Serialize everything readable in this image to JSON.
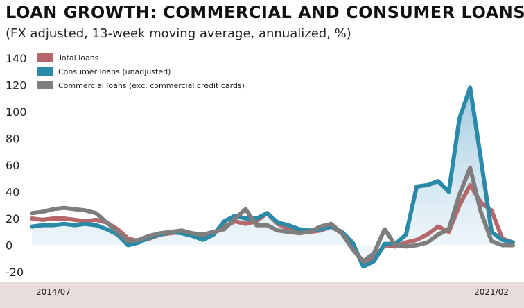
{
  "header": {
    "title": "LOAN GROWTH: COMMERCIAL AND CONSUMER LOANS",
    "subtitle": "(FX adjusted, 13-week moving average, annualized, %)"
  },
  "colors": {
    "total": "#b5676b",
    "consumer": "#2a8aa8",
    "commercial": "#7e7e7e",
    "area_top": "#9cc8de",
    "area_bottom": "#eef6fa",
    "xaxis_band": "#e9dcdc"
  },
  "chart_data": {
    "type": "line",
    "title": "LOAN GROWTH: COMMERCIAL AND CONSUMER LOANS",
    "subtitle": "(FX adjusted, 13-week moving average, annualized, %)",
    "xlabel": "",
    "ylabel": "",
    "x_start_label": "2014/07",
    "x_end_label": "2021/02",
    "ylim": [
      -20,
      140
    ],
    "yticks": [
      140,
      120,
      100,
      80,
      60,
      40,
      20,
      0,
      -20
    ],
    "grid": false,
    "legend_placement": "top-left",
    "x": [
      "2014/07",
      "2014/09",
      "2014/11",
      "2015/01",
      "2015/03",
      "2015/05",
      "2015/07",
      "2015/09",
      "2015/11",
      "2016/01",
      "2016/03",
      "2016/05",
      "2016/07",
      "2016/09",
      "2016/11",
      "2017/01",
      "2017/03",
      "2017/05",
      "2017/07",
      "2017/09",
      "2017/11",
      "2018/01",
      "2018/03",
      "2018/05",
      "2018/07",
      "2018/09",
      "2018/11",
      "2019/01",
      "2019/03",
      "2019/05",
      "2019/07",
      "2019/09",
      "2019/11",
      "2020/01",
      "2020/03",
      "2020/04",
      "2020/05",
      "2020/06",
      "2020/07",
      "2020/08",
      "2020/09",
      "2020/10",
      "2020/11",
      "2020/12",
      "2021/01",
      "2021/02"
    ],
    "series": [
      {
        "name": "Total loans",
        "values": [
          20,
          19,
          20,
          20,
          19,
          18,
          19,
          17,
          12,
          5,
          3,
          5,
          8,
          9,
          10,
          8,
          7,
          9,
          14,
          18,
          16,
          18,
          24,
          16,
          12,
          11,
          10,
          11,
          14,
          9,
          -2,
          -14,
          -10,
          0,
          -1,
          2,
          4,
          8,
          14,
          10,
          30,
          45,
          32,
          26,
          5,
          2
        ]
      },
      {
        "name": "Consumer loans (unadjusted)",
        "values": [
          14,
          15,
          15,
          16,
          15,
          16,
          15,
          12,
          8,
          0,
          2,
          6,
          8,
          10,
          9,
          7,
          4,
          8,
          18,
          22,
          20,
          20,
          24,
          17,
          15,
          12,
          11,
          12,
          14,
          10,
          2,
          -16,
          -12,
          1,
          1,
          8,
          44,
          45,
          48,
          40,
          95,
          118,
          65,
          10,
          4,
          2
        ]
      },
      {
        "name": "Commercial loans (exc. commercial credit cards)",
        "values": [
          24,
          25,
          27,
          28,
          27,
          26,
          24,
          17,
          10,
          3,
          4,
          7,
          9,
          10,
          11,
          9,
          8,
          10,
          12,
          20,
          27,
          15,
          15,
          11,
          10,
          9,
          10,
          14,
          16,
          9,
          -3,
          -12,
          -6,
          12,
          0,
          -1,
          0,
          2,
          8,
          12,
          38,
          58,
          25,
          3,
          0,
          0
        ]
      }
    ]
  }
}
